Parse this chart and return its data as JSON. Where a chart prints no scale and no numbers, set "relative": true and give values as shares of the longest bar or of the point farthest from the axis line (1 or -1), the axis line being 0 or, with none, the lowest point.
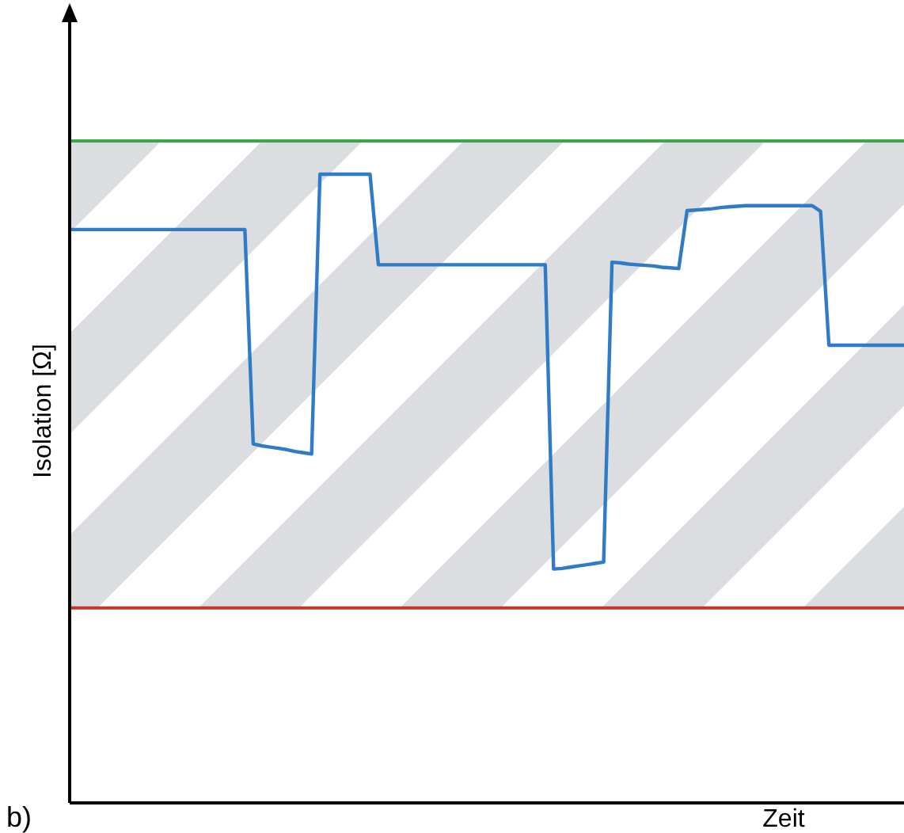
{
  "chart_data": {
    "type": "line",
    "relative": true,
    "xlabel": "Zeit",
    "ylabel": "Isolation [Ω]",
    "marker": "none",
    "line_style": "solid",
    "categories": [
      null,
      null,
      null,
      null,
      null,
      null,
      null,
      null,
      null,
      null,
      null,
      null,
      null,
      null,
      null,
      null,
      null,
      null,
      null,
      null,
      null,
      null,
      null,
      null,
      null,
      null,
      null,
      null,
      null,
      null,
      null,
      null,
      null,
      null,
      null,
      null,
      null,
      null,
      null,
      null,
      null,
      null,
      null,
      null,
      null,
      null,
      null,
      null,
      null,
      null,
      null,
      null,
      null,
      null,
      null,
      null,
      null,
      null,
      null,
      null,
      null,
      null,
      null,
      null,
      null,
      null,
      null,
      null,
      null,
      null,
      null,
      null,
      null,
      null,
      null,
      null,
      null,
      null,
      null,
      null,
      null,
      null,
      null,
      null,
      null,
      null,
      null,
      null,
      null,
      null,
      null,
      null,
      null,
      null,
      null,
      null,
      null,
      null,
      null,
      null,
      null
    ],
    "series": [
      {
        "color": "#2f7bc8",
        "values": [
          0.912,
          0.912,
          0.912,
          0.912,
          0.912,
          0.912,
          0.912,
          0.912,
          0.912,
          0.912,
          0.912,
          0.912,
          0.912,
          0.912,
          0.912,
          0.912,
          0.912,
          0.912,
          0.912,
          0.912,
          0.912,
          0.912,
          0.571,
          0.568,
          0.566,
          0.564,
          0.562,
          0.559,
          0.557,
          0.555,
          1,
          1,
          1,
          1,
          1,
          1,
          1,
          0.856,
          0.856,
          0.856,
          0.856,
          0.856,
          0.856,
          0.856,
          0.856,
          0.856,
          0.856,
          0.856,
          0.856,
          0.856,
          0.856,
          0.856,
          0.856,
          0.856,
          0.856,
          0.856,
          0.856,
          0.856,
          0.372,
          0.373,
          0.375,
          0.377,
          0.379,
          0.381,
          0.383,
          0.86,
          0.859,
          0.857,
          0.856,
          0.855,
          0.854,
          0.852,
          0.851,
          0.85,
          0.942,
          0.943,
          0.944,
          0.945,
          0.947,
          0.948,
          0.949,
          0.95,
          0.95,
          0.95,
          0.95,
          0.95,
          0.95,
          0.95,
          0.95,
          0.95,
          0.941,
          0.728,
          0.728,
          0.728,
          0.728,
          0.728,
          0.728,
          0.728,
          0.728,
          0.728,
          0.728
        ]
      }
    ],
    "ref_lines": [
      {
        "axis": "y",
        "value": 1.053,
        "label": null,
        "color": "#3aa845"
      },
      {
        "axis": "y",
        "value": 0.31,
        "label": null,
        "color": "#c0392b"
      }
    ],
    "bands": [
      {
        "axis": "y",
        "from": 0.31,
        "to": 1.053,
        "label": null,
        "color": "#dcdde0"
      }
    ],
    "annotations": [
      "b)"
    ]
  }
}
